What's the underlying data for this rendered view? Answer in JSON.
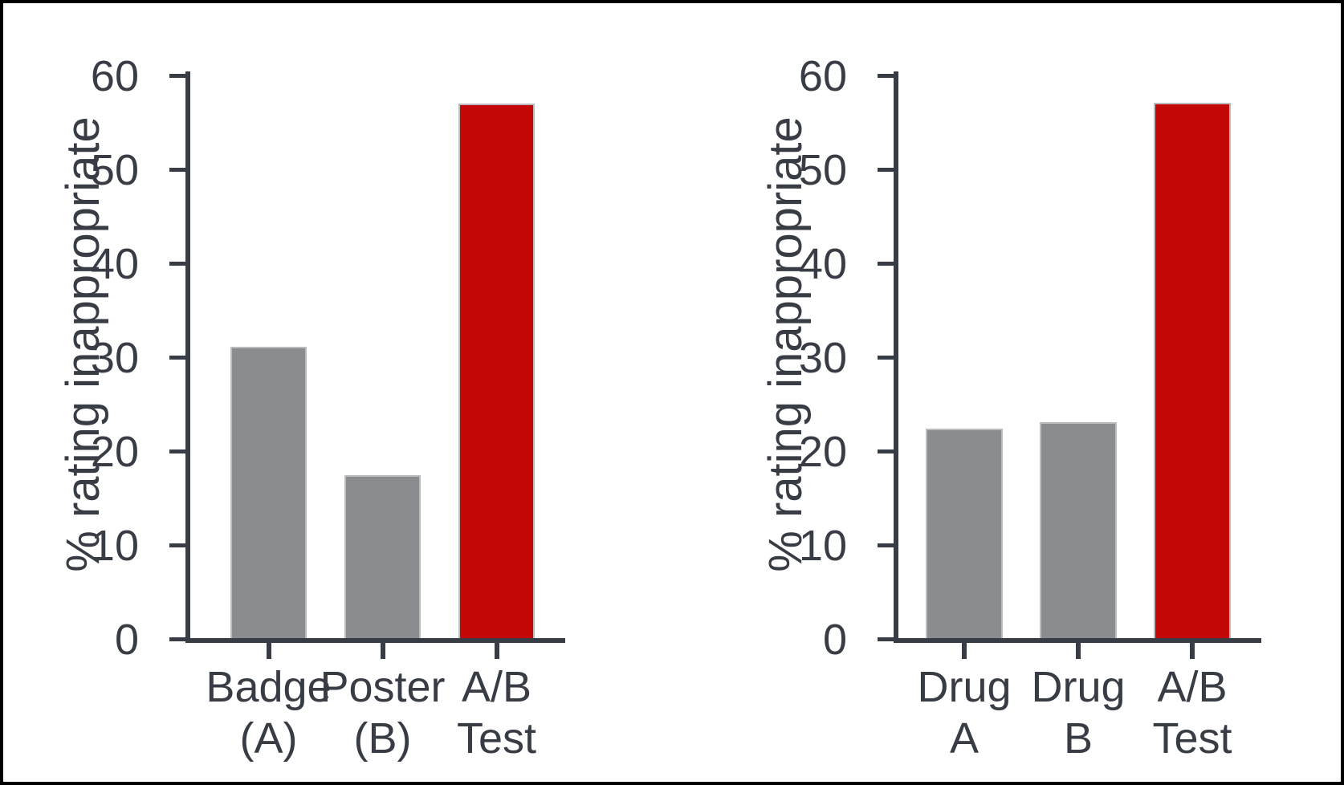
{
  "figure": {
    "background": "#ffffff",
    "frame_border": "#000000"
  },
  "colors": {
    "text": "#383c44",
    "axis": "#383c44",
    "bar_gray": "#8a8c8f",
    "bar_red": "#c40808",
    "bar_border": "#babcbd"
  },
  "chart_data": [
    {
      "type": "bar",
      "title": "",
      "xlabel": "",
      "ylabel": "% rating inappropriate",
      "ylim": [
        0,
        60
      ],
      "yticks": [
        0,
        10,
        20,
        30,
        40,
        50,
        60
      ],
      "grid": false,
      "legend": "none",
      "categories": [
        "Badge (A)",
        "Poster (B)",
        "A/B Test"
      ],
      "category_lines": [
        [
          "Badge",
          "(A)"
        ],
        [
          "Poster",
          "(B)"
        ],
        [
          "A/B",
          "Test"
        ]
      ],
      "values": [
        31.2,
        17.5,
        57.1
      ],
      "bar_color_keys": [
        "bar_gray",
        "bar_gray",
        "bar_red"
      ]
    },
    {
      "type": "bar",
      "title": "",
      "xlabel": "",
      "ylabel": "% rating inappropriate",
      "ylim": [
        0,
        60
      ],
      "yticks": [
        0,
        10,
        20,
        30,
        40,
        50,
        60
      ],
      "grid": false,
      "legend": "none",
      "categories": [
        "Drug A",
        "Drug B",
        "A/B Test"
      ],
      "category_lines": [
        [
          "Drug",
          "A"
        ],
        [
          "Drug",
          "B"
        ],
        [
          "A/B",
          "Test"
        ]
      ],
      "values": [
        22.5,
        23.2,
        57.2
      ],
      "bar_color_keys": [
        "bar_gray",
        "bar_gray",
        "bar_red"
      ]
    }
  ]
}
